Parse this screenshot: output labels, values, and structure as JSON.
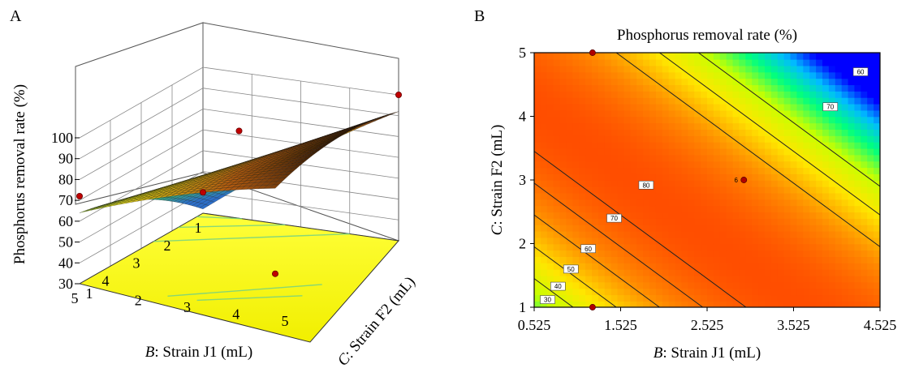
{
  "chart_data": [
    {
      "panel_label": "A",
      "type": "surface3d",
      "title": "",
      "xlabel_italic": "B",
      "xlabel_rest": ": Strain J1 (mL)",
      "ylabel_italic": "C",
      "ylabel_rest": ": Strain F2 (mL)",
      "zlabel": "Phosphorus removal rate (%)",
      "x_ticks": [
        "1",
        "2",
        "3",
        "4",
        "5"
      ],
      "y_ticks": [
        "1",
        "2",
        "3",
        "4",
        "5"
      ],
      "z_ticks": [
        "30",
        "40",
        "50",
        "60",
        "70",
        "80",
        "90",
        "100"
      ],
      "xlim": [
        1,
        5
      ],
      "ylim": [
        1,
        5
      ],
      "zlim": [
        30,
        100
      ],
      "design_points": [
        {
          "x": 1,
          "y": 1,
          "z": 40
        },
        {
          "x": 1,
          "y": 5,
          "z": 100
        },
        {
          "x": 3,
          "y": 3,
          "z": 93
        },
        {
          "x": 5,
          "y": 1,
          "z": 72
        },
        {
          "x": 5,
          "y": 5,
          "z": 48
        }
      ],
      "floor_color": "#ffff00",
      "surface_colors": [
        "#2d6fc9",
        "#3dc35a",
        "#e6e017",
        "#b05a10",
        "#000000"
      ]
    },
    {
      "panel_label": "B",
      "type": "contour",
      "title": "Phosphorus removal rate (%)",
      "xlabel_italic": "B",
      "xlabel_rest": ": Strain J1 (mL)",
      "ylabel_italic": "C",
      "ylabel_rest": ": Strain F2 (mL)",
      "x_ticks": [
        "0.525",
        "1.525",
        "2.525",
        "3.525",
        "4.525"
      ],
      "y_ticks": [
        "1",
        "2",
        "3",
        "4",
        "5"
      ],
      "xlim": [
        0.525,
        4.525
      ],
      "ylim": [
        1,
        5
      ],
      "contour_levels": [
        "30",
        "40",
        "50",
        "60",
        "70",
        "80",
        "70",
        "60"
      ],
      "center_label": "6",
      "design_points": [
        {
          "x": 1.2,
          "y": 5
        },
        {
          "x": 1.2,
          "y": 1
        },
        {
          "x": 2.95,
          "y": 3
        }
      ],
      "colormap": [
        "#0000ff",
        "#00bcff",
        "#00ff7f",
        "#c8ff00",
        "#ffe600",
        "#ff8a00",
        "#ff4000"
      ]
    }
  ]
}
